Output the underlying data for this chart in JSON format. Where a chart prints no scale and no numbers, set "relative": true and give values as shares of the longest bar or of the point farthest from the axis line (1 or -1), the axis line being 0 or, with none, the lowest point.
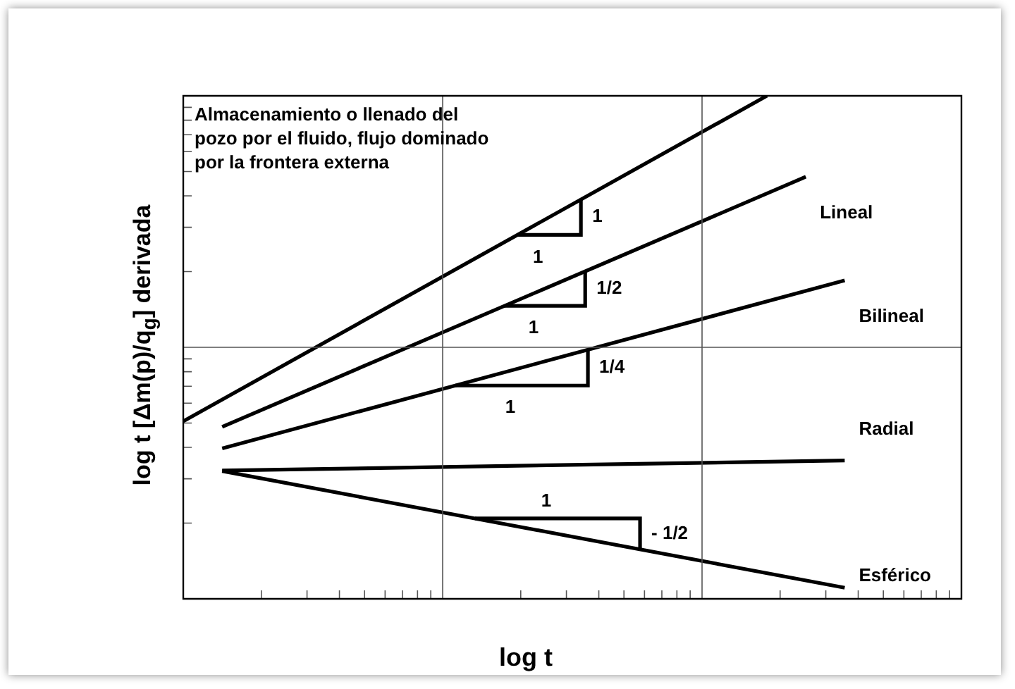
{
  "chart_data": {
    "type": "line",
    "xlabel": "log t",
    "ylabel": "log t [Δm(p)/q$_{g}$] derivada",
    "relative": true,
    "marker": "none",
    "annotations": [
      "Almacenamiento o llenado del pozo por el fluido, flujo dominado por la frontera externa",
      "1",
      "1",
      "1/2",
      "1",
      "1/4",
      "1",
      "- 1/2",
      "1"
    ],
    "categories": [
      null,
      null,
      null,
      null,
      null,
      null,
      null,
      null,
      null,
      null,
      null,
      null,
      null,
      null,
      null,
      null,
      null,
      null,
      null,
      null,
      null
    ],
    "series": [
      {
        "color": "#000000",
        "values": [
          0.353,
          null,
          null,
          null,
          null,
          null,
          null,
          null,
          null,
          null,
          null,
          null,
          null,
          null,
          null,
          1,
          null,
          null,
          null,
          null,
          null
        ]
      },
      {
        "name": "Lineal",
        "color": "#000000",
        "values": [
          null,
          0.342,
          null,
          null,
          null,
          null,
          null,
          null,
          null,
          null,
          null,
          null,
          null,
          null,
          null,
          null,
          0.839,
          null,
          null,
          null,
          null
        ]
      },
      {
        "name": "Bilineal",
        "color": "#000000",
        "values": [
          null,
          0.299,
          null,
          null,
          null,
          null,
          null,
          null,
          null,
          null,
          null,
          null,
          null,
          null,
          null,
          null,
          null,
          0.633,
          null,
          null,
          null
        ]
      },
      {
        "name": "Radial",
        "color": "#000000",
        "values": [
          null,
          0.255,
          null,
          null,
          null,
          null,
          null,
          null,
          null,
          null,
          null,
          null,
          null,
          null,
          null,
          null,
          null,
          0.275,
          null,
          null,
          null
        ]
      },
      {
        "name": "Esférico",
        "color": "#000000",
        "values": [
          null,
          0.254,
          null,
          null,
          null,
          null,
          null,
          null,
          null,
          null,
          null,
          null,
          null,
          null,
          null,
          null,
          null,
          0.022,
          null,
          null,
          null
        ]
      }
    ]
  }
}
